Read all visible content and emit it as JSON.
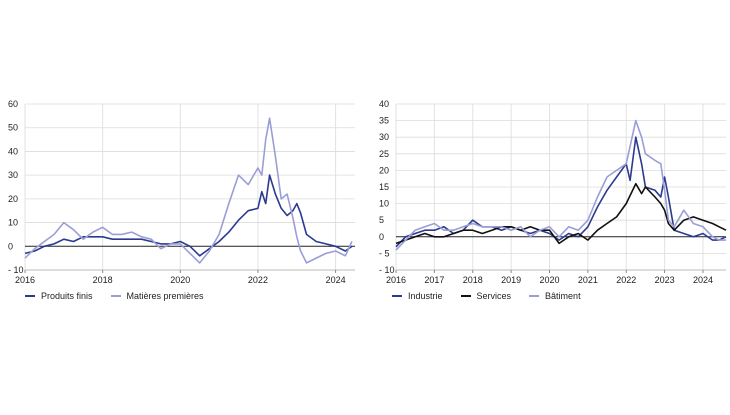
{
  "chart_data": [
    {
      "type": "line",
      "title": "",
      "xlabel": "",
      "ylabel": "",
      "x_ticks": [
        "2016",
        "2018",
        "2020",
        "2022",
        "2024"
      ],
      "y_ticks": [
        "- 10",
        "0",
        "10",
        "20",
        "30",
        "40",
        "50",
        "60"
      ],
      "xlim": [
        2016,
        2024.5
      ],
      "ylim": [
        -10,
        60
      ],
      "grid": "horizontal",
      "legend_position": "bottom-left",
      "series": [
        {
          "name": "Produits finis",
          "color": "#2b3b8f",
          "points": [
            [
              2016.0,
              -3
            ],
            [
              2016.25,
              -2
            ],
            [
              2016.5,
              0
            ],
            [
              2016.75,
              1
            ],
            [
              2017.0,
              3
            ],
            [
              2017.25,
              2
            ],
            [
              2017.5,
              4
            ],
            [
              2017.75,
              4
            ],
            [
              2018.0,
              4
            ],
            [
              2018.25,
              3
            ],
            [
              2018.5,
              3
            ],
            [
              2018.75,
              3
            ],
            [
              2019.0,
              3
            ],
            [
              2019.25,
              2
            ],
            [
              2019.5,
              1
            ],
            [
              2019.75,
              1
            ],
            [
              2020.0,
              2
            ],
            [
              2020.25,
              0
            ],
            [
              2020.5,
              -4
            ],
            [
              2020.75,
              -1
            ],
            [
              2021.0,
              2
            ],
            [
              2021.25,
              6
            ],
            [
              2021.5,
              11
            ],
            [
              2021.75,
              15
            ],
            [
              2022.0,
              16
            ],
            [
              2022.1,
              23
            ],
            [
              2022.2,
              18
            ],
            [
              2022.3,
              30
            ],
            [
              2022.45,
              22
            ],
            [
              2022.6,
              16
            ],
            [
              2022.75,
              13
            ],
            [
              2022.9,
              15
            ],
            [
              2023.0,
              18
            ],
            [
              2023.1,
              14
            ],
            [
              2023.25,
              5
            ],
            [
              2023.5,
              2
            ],
            [
              2023.75,
              1
            ],
            [
              2024.0,
              0
            ],
            [
              2024.25,
              -2
            ],
            [
              2024.42,
              0
            ]
          ]
        },
        {
          "name": "Matières premières",
          "color": "#9b9ed6",
          "points": [
            [
              2016.0,
              -5
            ],
            [
              2016.25,
              -1
            ],
            [
              2016.5,
              2
            ],
            [
              2016.75,
              5
            ],
            [
              2017.0,
              10
            ],
            [
              2017.25,
              7
            ],
            [
              2017.5,
              3
            ],
            [
              2017.75,
              6
            ],
            [
              2018.0,
              8
            ],
            [
              2018.25,
              5
            ],
            [
              2018.5,
              5
            ],
            [
              2018.75,
              6
            ],
            [
              2019.0,
              4
            ],
            [
              2019.25,
              3
            ],
            [
              2019.5,
              -1
            ],
            [
              2019.75,
              1
            ],
            [
              2020.0,
              1
            ],
            [
              2020.25,
              -3
            ],
            [
              2020.5,
              -7
            ],
            [
              2020.75,
              -2
            ],
            [
              2021.0,
              5
            ],
            [
              2021.25,
              18
            ],
            [
              2021.5,
              30
            ],
            [
              2021.75,
              26
            ],
            [
              2022.0,
              33
            ],
            [
              2022.1,
              30
            ],
            [
              2022.2,
              45
            ],
            [
              2022.3,
              54
            ],
            [
              2022.45,
              38
            ],
            [
              2022.6,
              20
            ],
            [
              2022.75,
              22
            ],
            [
              2022.9,
              12
            ],
            [
              2023.0,
              4
            ],
            [
              2023.1,
              -2
            ],
            [
              2023.25,
              -7
            ],
            [
              2023.5,
              -5
            ],
            [
              2023.75,
              -3
            ],
            [
              2024.0,
              -2
            ],
            [
              2024.25,
              -4
            ],
            [
              2024.42,
              2
            ]
          ]
        }
      ]
    },
    {
      "type": "line",
      "title": "",
      "xlabel": "",
      "ylabel": "",
      "x_ticks": [
        "2016",
        "2017",
        "2018",
        "2019",
        "2020",
        "2021",
        "2022",
        "2023",
        "2024"
      ],
      "y_ticks": [
        "- 10",
        "- 5",
        "0",
        "5",
        "10",
        "15",
        "20",
        "25",
        "30",
        "35",
        "40"
      ],
      "xlim": [
        2016,
        2024.6
      ],
      "ylim": [
        -10,
        40
      ],
      "grid": "horizontal",
      "legend_position": "bottom-left",
      "series": [
        {
          "name": "Industrie",
          "color": "#2b3b8f",
          "points": [
            [
              2016.0,
              -3
            ],
            [
              2016.25,
              0
            ],
            [
              2016.5,
              1
            ],
            [
              2016.75,
              2
            ],
            [
              2017.0,
              2
            ],
            [
              2017.25,
              3
            ],
            [
              2017.5,
              1
            ],
            [
              2017.75,
              2
            ],
            [
              2018.0,
              5
            ],
            [
              2018.25,
              3
            ],
            [
              2018.5,
              3
            ],
            [
              2018.75,
              2
            ],
            [
              2019.0,
              3
            ],
            [
              2019.25,
              2
            ],
            [
              2019.5,
              1
            ],
            [
              2019.75,
              2
            ],
            [
              2020.0,
              1
            ],
            [
              2020.25,
              -1
            ],
            [
              2020.5,
              1
            ],
            [
              2020.75,
              0
            ],
            [
              2021.0,
              3
            ],
            [
              2021.25,
              9
            ],
            [
              2021.5,
              14
            ],
            [
              2021.75,
              18
            ],
            [
              2022.0,
              22
            ],
            [
              2022.1,
              17
            ],
            [
              2022.25,
              30
            ],
            [
              2022.4,
              22
            ],
            [
              2022.5,
              15
            ],
            [
              2022.75,
              14
            ],
            [
              2022.9,
              12
            ],
            [
              2023.0,
              18
            ],
            [
              2023.1,
              12
            ],
            [
              2023.25,
              2
            ],
            [
              2023.5,
              1
            ],
            [
              2023.75,
              0
            ],
            [
              2024.0,
              1
            ],
            [
              2024.25,
              -1
            ],
            [
              2024.42,
              -1
            ],
            [
              2024.6,
              0
            ]
          ]
        },
        {
          "name": "Services",
          "color": "#111111",
          "points": [
            [
              2016.0,
              -2
            ],
            [
              2016.25,
              -1
            ],
            [
              2016.5,
              0
            ],
            [
              2016.75,
              1
            ],
            [
              2017.0,
              0
            ],
            [
              2017.25,
              0
            ],
            [
              2017.5,
              1
            ],
            [
              2017.75,
              2
            ],
            [
              2018.0,
              2
            ],
            [
              2018.25,
              1
            ],
            [
              2018.5,
              2
            ],
            [
              2018.75,
              3
            ],
            [
              2019.0,
              3
            ],
            [
              2019.25,
              2
            ],
            [
              2019.5,
              3
            ],
            [
              2019.75,
              2
            ],
            [
              2020.0,
              2
            ],
            [
              2020.25,
              -2
            ],
            [
              2020.5,
              0
            ],
            [
              2020.75,
              1
            ],
            [
              2021.0,
              -1
            ],
            [
              2021.25,
              2
            ],
            [
              2021.5,
              4
            ],
            [
              2021.75,
              6
            ],
            [
              2022.0,
              10
            ],
            [
              2022.25,
              16
            ],
            [
              2022.4,
              13
            ],
            [
              2022.5,
              15
            ],
            [
              2022.75,
              12
            ],
            [
              2022.9,
              10
            ],
            [
              2023.0,
              8
            ],
            [
              2023.1,
              4
            ],
            [
              2023.25,
              2
            ],
            [
              2023.5,
              5
            ],
            [
              2023.75,
              6
            ],
            [
              2024.0,
              5
            ],
            [
              2024.25,
              4
            ],
            [
              2024.42,
              3
            ],
            [
              2024.6,
              2
            ]
          ]
        },
        {
          "name": "Bâtiment",
          "color": "#9b9ed6",
          "points": [
            [
              2016.0,
              -4
            ],
            [
              2016.25,
              -1
            ],
            [
              2016.5,
              2
            ],
            [
              2016.75,
              3
            ],
            [
              2017.0,
              4
            ],
            [
              2017.25,
              2
            ],
            [
              2017.5,
              2
            ],
            [
              2017.75,
              3
            ],
            [
              2018.0,
              4
            ],
            [
              2018.25,
              3
            ],
            [
              2018.5,
              3
            ],
            [
              2018.75,
              3
            ],
            [
              2019.0,
              2
            ],
            [
              2019.25,
              3
            ],
            [
              2019.5,
              0
            ],
            [
              2019.75,
              2
            ],
            [
              2020.0,
              3
            ],
            [
              2020.25,
              0
            ],
            [
              2020.5,
              3
            ],
            [
              2020.75,
              2
            ],
            [
              2021.0,
              5
            ],
            [
              2021.25,
              12
            ],
            [
              2021.5,
              18
            ],
            [
              2021.75,
              20
            ],
            [
              2022.0,
              22
            ],
            [
              2022.25,
              35
            ],
            [
              2022.4,
              30
            ],
            [
              2022.5,
              25
            ],
            [
              2022.75,
              23
            ],
            [
              2022.9,
              22
            ],
            [
              2023.0,
              14
            ],
            [
              2023.1,
              5
            ],
            [
              2023.25,
              3
            ],
            [
              2023.5,
              8
            ],
            [
              2023.75,
              4
            ],
            [
              2024.0,
              3
            ],
            [
              2024.25,
              0
            ],
            [
              2024.42,
              -1
            ],
            [
              2024.6,
              -1
            ]
          ]
        }
      ]
    }
  ]
}
